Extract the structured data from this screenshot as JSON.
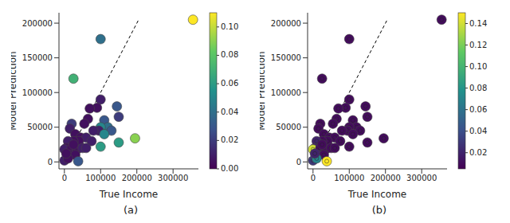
{
  "chart_data": [
    {
      "type": "scatter",
      "title": "(a)",
      "x_label": "True Income",
      "y_label": "Model Prediction",
      "xlim": [
        -15000,
        370000
      ],
      "ylim": [
        -10000,
        215000
      ],
      "xticks": [
        0,
        100000,
        200000,
        300000
      ],
      "yticks": [
        0,
        50000,
        100000,
        150000,
        200000
      ],
      "reference_line": {
        "x": [
          0,
          205000
        ],
        "y": [
          0,
          205000
        ]
      },
      "x": [
        355000,
        100000,
        25000,
        145000,
        100000,
        90000,
        70000,
        65000,
        150000,
        110000,
        120000,
        100000,
        95000,
        130000,
        80000,
        110000,
        55000,
        20000,
        15000,
        30000,
        45000,
        60000,
        75000,
        150000,
        195000,
        100000,
        40000,
        25000,
        10000,
        5000,
        0,
        20000,
        35000,
        50000,
        15000,
        30000,
        0,
        10000,
        38000,
        25000,
        60000,
        5000
      ],
      "y": [
        205000,
        177000,
        120000,
        80000,
        90000,
        78000,
        77000,
        62000,
        65000,
        60000,
        50000,
        50000,
        45000,
        45000,
        45000,
        40000,
        55000,
        55000,
        48000,
        40000,
        35000,
        35000,
        30000,
        28000,
        34000,
        22000,
        30000,
        30000,
        30000,
        20000,
        18000,
        20000,
        18000,
        20000,
        10000,
        10000,
        2000,
        5000,
        1000,
        25000,
        20000,
        12000
      ],
      "color_values": [
        0.11,
        0.04,
        0.07,
        0.03,
        0.01,
        0.005,
        0.005,
        0.005,
        0.02,
        0.03,
        0.04,
        0.05,
        0.01,
        0.03,
        0.01,
        0.05,
        0.005,
        0.02,
        0.01,
        0.005,
        0.005,
        0.01,
        0.01,
        0.06,
        0.09,
        0.06,
        0.005,
        0.005,
        0.01,
        0.005,
        0.01,
        0.005,
        0.005,
        0.01,
        0.005,
        0.005,
        0.01,
        0.005,
        0.03,
        0.005,
        0.01,
        0.005
      ],
      "colorbar": {
        "range": [
          0,
          0.11
        ],
        "ticks": [
          {
            "value": 0,
            "label": "0.00"
          },
          {
            "value": 0.02,
            "label": "0.02"
          },
          {
            "value": 0.04,
            "label": "0.04"
          },
          {
            "value": 0.06,
            "label": "0.06"
          },
          {
            "value": 0.08,
            "label": "0.08"
          },
          {
            "value": 0.1,
            "label": "0.10"
          }
        ]
      }
    },
    {
      "type": "scatter",
      "title": "(b)",
      "x_label": "True Income",
      "y_label": "Model Prediction",
      "xlim": [
        -15000,
        370000
      ],
      "ylim": [
        -10000,
        215000
      ],
      "xticks": [
        0,
        100000,
        200000,
        300000
      ],
      "yticks": [
        0,
        50000,
        100000,
        150000,
        200000
      ],
      "reference_line": {
        "x": [
          0,
          205000
        ],
        "y": [
          0,
          205000
        ]
      },
      "x": [
        355000,
        100000,
        25000,
        145000,
        100000,
        90000,
        70000,
        65000,
        150000,
        110000,
        120000,
        100000,
        95000,
        130000,
        80000,
        110000,
        55000,
        20000,
        15000,
        30000,
        45000,
        60000,
        75000,
        150000,
        195000,
        100000,
        40000,
        25000,
        10000,
        5000,
        0,
        20000,
        35000,
        50000,
        15000,
        30000,
        0,
        10000,
        38000,
        25000,
        60000,
        5000
      ],
      "y": [
        205000,
        177000,
        120000,
        80000,
        90000,
        78000,
        77000,
        62000,
        65000,
        60000,
        50000,
        50000,
        45000,
        45000,
        45000,
        40000,
        55000,
        55000,
        48000,
        40000,
        35000,
        35000,
        30000,
        28000,
        34000,
        22000,
        30000,
        30000,
        30000,
        20000,
        18000,
        20000,
        18000,
        20000,
        10000,
        10000,
        2000,
        5000,
        1000,
        25000,
        20000,
        12000
      ],
      "color_values": [
        0.01,
        0.01,
        0.01,
        0.01,
        0.01,
        0.01,
        0.01,
        0.01,
        0.01,
        0.01,
        0.01,
        0.01,
        0.01,
        0.01,
        0.01,
        0.01,
        0.01,
        0.01,
        0.01,
        0.01,
        0.01,
        0.01,
        0.01,
        0.01,
        0.01,
        0.01,
        0.01,
        0.01,
        0.02,
        0.02,
        0.14,
        0.01,
        0.01,
        0.01,
        0.02,
        0.01,
        0.03,
        0.07,
        0.15,
        0.01,
        0.01,
        0.02
      ],
      "colorbar": {
        "range": [
          0.005,
          0.15
        ],
        "ticks": [
          {
            "value": 0.02,
            "label": "0.02"
          },
          {
            "value": 0.04,
            "label": "0.04"
          },
          {
            "value": 0.06,
            "label": "0.06"
          },
          {
            "value": 0.08,
            "label": "0.08"
          },
          {
            "value": 0.1,
            "label": "0.10"
          },
          {
            "value": 0.12,
            "label": "0.12"
          },
          {
            "value": 0.14,
            "label": "0.14"
          }
        ]
      }
    }
  ]
}
